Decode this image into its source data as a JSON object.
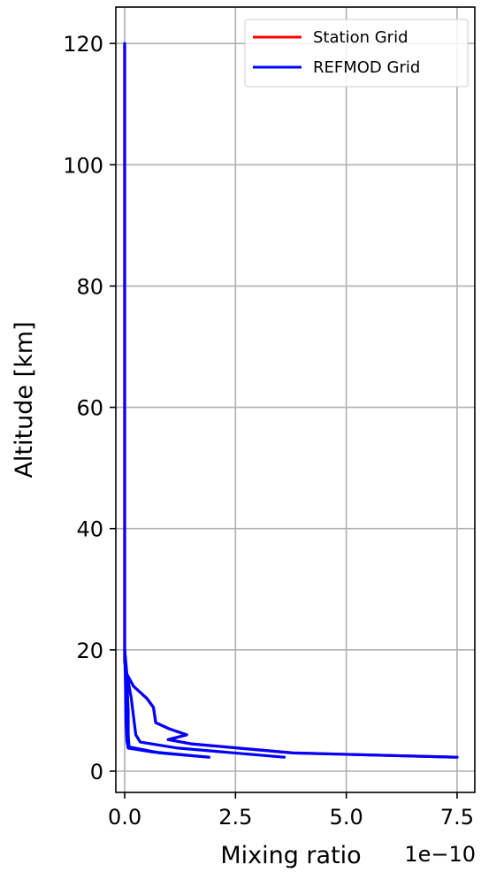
{
  "chart_data": {
    "type": "line",
    "xlabel": "Mixing ratio",
    "ylabel": "Altitude [km]",
    "x_offset_text": "1e−10",
    "x_multiplier": 1e-10,
    "xlim": [
      -2e-11,
      7.9e-10
    ],
    "ylim": [
      -3.5,
      126
    ],
    "x_ticks": [
      0,
      2.5e-10,
      5e-10,
      7.5e-10
    ],
    "x_tick_labels": [
      "0.0",
      "2.5",
      "5.0",
      "7.5"
    ],
    "y_ticks": [
      0,
      20,
      40,
      60,
      80,
      100,
      120
    ],
    "y_tick_labels": [
      "0",
      "20",
      "40",
      "60",
      "80",
      "100",
      "120"
    ],
    "grid": true,
    "legend_position": "top-right",
    "series": [
      {
        "name": "Station Grid",
        "color": "#ff0000",
        "points": [
          [
            0.0,
            120
          ],
          [
            0.0,
            18
          ],
          [
            5e-12,
            16
          ],
          [
            2e-11,
            14
          ],
          [
            5e-11,
            12
          ],
          [
            6.5e-11,
            10.5
          ],
          [
            7e-11,
            8
          ],
          [
            1e-10,
            7
          ],
          [
            1.4e-10,
            6
          ],
          [
            9.8e-11,
            5.2
          ],
          [
            1.5e-10,
            4.5
          ],
          [
            3.8e-10,
            3
          ],
          [
            7.5e-10,
            2.3
          ]
        ]
      },
      {
        "name": "REFMOD Grid",
        "color": "#0000ff",
        "points": [
          [
            0.0,
            120
          ],
          [
            0.0,
            18
          ],
          [
            5e-12,
            16
          ],
          [
            2e-11,
            14
          ],
          [
            5e-11,
            12
          ],
          [
            6.5e-11,
            10.5
          ],
          [
            7e-11,
            8
          ],
          [
            1e-10,
            7
          ],
          [
            1.4e-10,
            6
          ],
          [
            9.8e-11,
            5.2
          ],
          [
            1.5e-10,
            4.5
          ],
          [
            3.8e-10,
            3
          ],
          [
            7.5e-10,
            2.3
          ]
        ]
      },
      {
        "name": "",
        "color": "#0000ff",
        "points": [
          [
            0.0,
            20
          ],
          [
            5e-12,
            16
          ],
          [
            1.5e-11,
            12
          ],
          [
            2e-11,
            9
          ],
          [
            2.5e-11,
            6
          ],
          [
            3.5e-11,
            4.8
          ],
          [
            1.2e-10,
            3.8
          ],
          [
            3.6e-10,
            2.3
          ]
        ]
      },
      {
        "name": "",
        "color": "#0000ff",
        "points": [
          [
            0.0,
            20
          ],
          [
            5e-12,
            15
          ],
          [
            8e-12,
            10
          ],
          [
            8e-12,
            6
          ],
          [
            1e-11,
            4
          ],
          [
            8e-11,
            3
          ],
          [
            1.9e-10,
            2.3
          ]
        ]
      },
      {
        "name": "",
        "color": "#0000ff",
        "points": [
          [
            0.0,
            20
          ],
          [
            2e-12,
            14
          ],
          [
            3e-12,
            8
          ],
          [
            5e-12,
            5
          ],
          [
            8e-12,
            3.8
          ],
          [
            6e-11,
            3.2
          ],
          [
            1.9e-10,
            2.3
          ]
        ]
      }
    ]
  },
  "legend": {
    "items": [
      {
        "label": "Station Grid",
        "color": "#ff0000"
      },
      {
        "label": "REFMOD Grid",
        "color": "#0000ff"
      }
    ]
  }
}
